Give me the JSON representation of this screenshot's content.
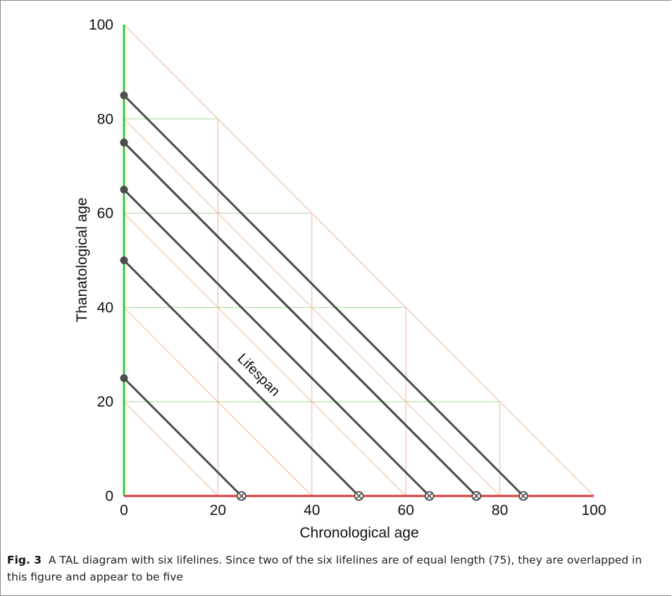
{
  "chart_data": {
    "type": "line",
    "xlabel": "Chronological age",
    "ylabel": "Thanatological age",
    "xlim": [
      0,
      100
    ],
    "ylim": [
      0,
      100
    ],
    "xticks": [
      "0",
      "20",
      "40",
      "60",
      "80",
      "100"
    ],
    "yticks": [
      "0",
      "20",
      "40",
      "60",
      "80",
      "100"
    ],
    "grid": true,
    "lifespans": [
      25,
      50,
      65,
      75,
      75,
      85
    ],
    "lifelines": [
      {
        "start": [
          0,
          25
        ],
        "end": [
          25,
          0
        ]
      },
      {
        "start": [
          0,
          50
        ],
        "end": [
          50,
          0
        ]
      },
      {
        "start": [
          0,
          65
        ],
        "end": [
          65,
          0
        ]
      },
      {
        "start": [
          0,
          75
        ],
        "end": [
          75,
          0
        ]
      },
      {
        "start": [
          0,
          75
        ],
        "end": [
          75,
          0
        ]
      },
      {
        "start": [
          0,
          85
        ],
        "end": [
          85,
          0
        ]
      }
    ],
    "annotation": {
      "text": "Lifespan",
      "x": 28,
      "y": 25
    },
    "colors": {
      "lifeline": "#4d4d4d",
      "y_axis": "#3cc43c",
      "x_axis": "#d93a3a",
      "grid_green": "#a8d8a0",
      "grid_red": "#efb0a8",
      "diagonal": "#f0b894"
    }
  },
  "caption": {
    "label": "Fig. 3",
    "text": "A TAL diagram with six lifelines. Since two of the six lifelines are of equal length (75), they are overlapped in this figure and appear to be five"
  }
}
